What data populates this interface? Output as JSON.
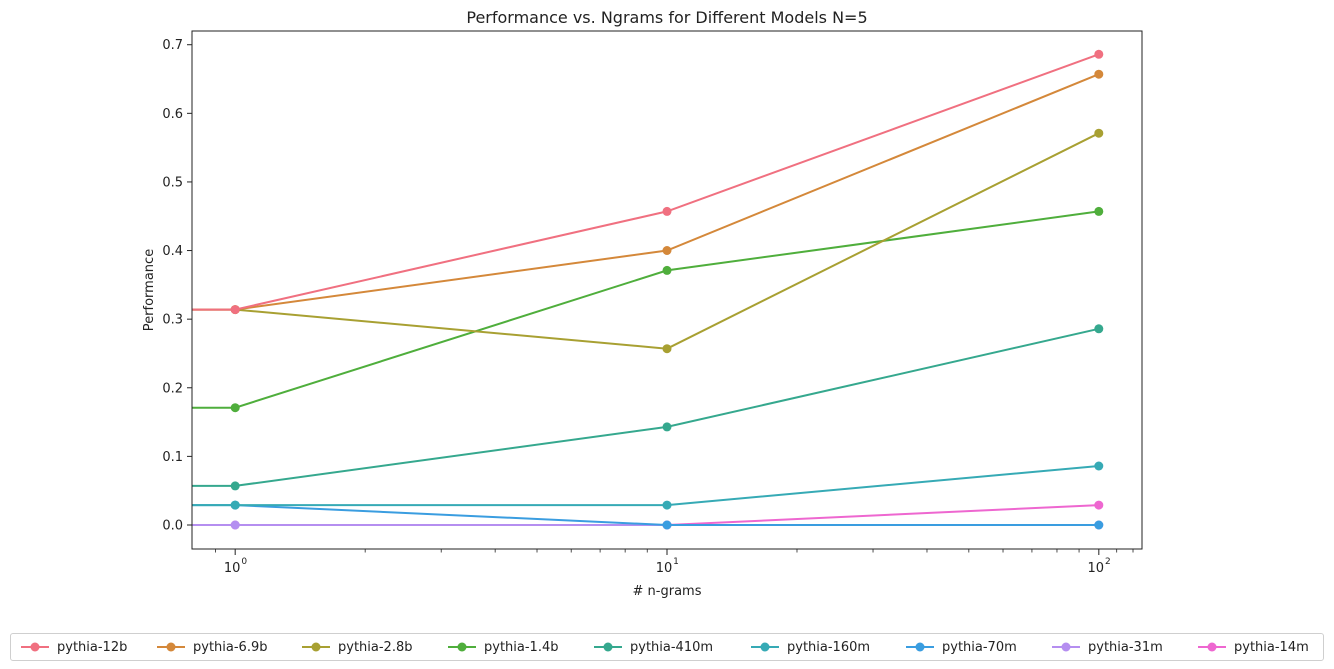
{
  "chart_data": {
    "type": "line",
    "title": "Performance vs. Ngrams for Different Models N=5",
    "xlabel": "# n-grams",
    "ylabel": "Performance",
    "xscale": "log",
    "x": [
      1,
      10,
      100
    ],
    "xtick_labels": [
      {
        "base": "10",
        "exp": "0"
      },
      {
        "base": "10",
        "exp": "1"
      },
      {
        "base": "10",
        "exp": "2"
      }
    ],
    "ylim": [
      -0.035,
      0.72
    ],
    "yticks": [
      0.0,
      0.1,
      0.2,
      0.3,
      0.4,
      0.5,
      0.6,
      0.7
    ],
    "ytick_labels": [
      "0.0",
      "0.1",
      "0.2",
      "0.3",
      "0.4",
      "0.5",
      "0.6",
      "0.7"
    ],
    "series_start_value_from_left_edge": true,
    "series": [
      {
        "name": "pythia-12b",
        "color": "#f07080",
        "values": [
          0.314,
          0.457,
          0.686
        ]
      },
      {
        "name": "pythia-6.9b",
        "color": "#d4883a",
        "values": [
          0.314,
          0.4,
          0.657
        ]
      },
      {
        "name": "pythia-2.8b",
        "color": "#a8a032",
        "values": [
          0.314,
          0.257,
          0.571
        ]
      },
      {
        "name": "pythia-1.4b",
        "color": "#4fae3c",
        "values": [
          0.171,
          0.371,
          0.457
        ]
      },
      {
        "name": "pythia-410m",
        "color": "#35a88e",
        "values": [
          0.057,
          0.143,
          0.286
        ]
      },
      {
        "name": "pythia-160m",
        "color": "#36aab5",
        "values": [
          0.029,
          0.029,
          0.086
        ]
      },
      {
        "name": "pythia-70m",
        "color": "#3a9de0",
        "values": [
          0.029,
          0.0,
          0.0
        ]
      },
      {
        "name": "pythia-31m",
        "color": "#b58ef0",
        "values": [
          0.0,
          0.0,
          0.0
        ]
      },
      {
        "name": "pythia-14m",
        "color": "#ee67d0",
        "values": [
          0.0,
          0.0,
          0.029
        ]
      }
    ],
    "legend": {
      "placement": "bottom"
    },
    "grid": false
  }
}
